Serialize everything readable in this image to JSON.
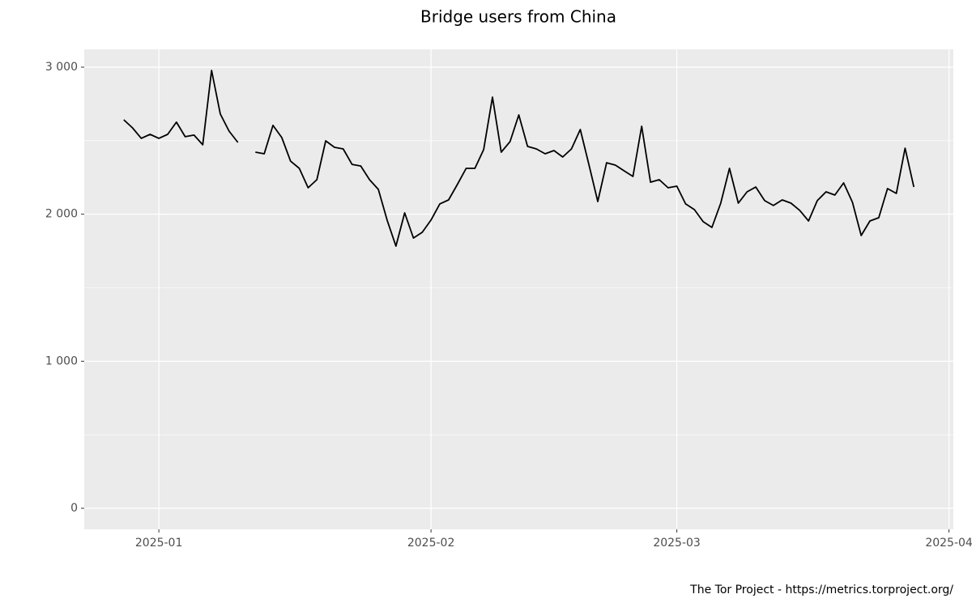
{
  "chart_data": {
    "type": "line",
    "title": "Bridge users from China",
    "caption": "The Tor Project - https://metrics.torproject.org/",
    "categories": [
      null,
      null,
      null,
      null,
      null,
      null,
      null,
      null,
      "2025-01",
      null,
      null,
      null,
      null,
      null,
      null,
      null,
      null,
      null,
      null,
      null,
      null,
      null,
      null,
      null,
      null,
      null,
      null,
      null,
      null,
      null,
      null,
      null,
      null,
      null,
      null,
      null,
      null,
      null,
      null,
      "2025-02",
      null,
      null,
      null,
      null,
      null,
      null,
      null,
      null,
      null,
      null,
      null,
      null,
      null,
      null,
      null,
      null,
      null,
      null,
      null,
      null,
      null,
      null,
      null,
      null,
      null,
      null,
      null,
      "2025-03",
      null,
      null,
      null,
      null,
      null,
      null,
      null,
      null,
      null,
      null,
      null,
      null,
      null,
      null,
      null,
      null,
      null,
      null,
      null,
      null,
      null,
      null,
      null,
      null,
      null,
      null,
      null,
      null,
      null,
      null,
      "2025-04"
    ],
    "series": [
      {
        "color": "#000000",
        "values": [
          null,
          null,
          null,
          null,
          2642,
          2587,
          2516,
          2543,
          2516,
          2543,
          2626,
          2527,
          2538,
          2472,
          2978,
          2681,
          2565,
          2488,
          null,
          2422,
          2411,
          2604,
          2521,
          2361,
          2312,
          2180,
          2235,
          2499,
          2455,
          2444,
          2339,
          2328,
          2235,
          2169,
          1960,
          1783,
          2009,
          1838,
          1877,
          1960,
          2070,
          2097,
          2202,
          2312,
          2312,
          2439,
          2796,
          2422,
          2494,
          2675,
          2461,
          2444,
          2411,
          2433,
          2389,
          2444,
          2576,
          2334,
          2086,
          2350,
          2334,
          2295,
          2257,
          2598,
          2218,
          2235,
          2180,
          2191,
          2070,
          2031,
          1949,
          1910,
          2075,
          2312,
          2075,
          2152,
          2185,
          2092,
          2059,
          2097,
          2075,
          2026,
          1954,
          2092,
          2152,
          2130,
          2213,
          2081,
          1855,
          1954,
          1976,
          2174,
          2141,
          2449,
          2185,
          null,
          null,
          null,
          null
        ]
      }
    ],
    "ylim": [
      -143,
      3121
    ],
    "yticks": [
      0,
      {
        "value": 1000,
        "label": "1 000"
      },
      {
        "value": 2000,
        "label": "2 000"
      },
      {
        "value": 3000,
        "label": "3 000"
      }
    ],
    "yminor": [
      500,
      1500,
      2500
    ],
    "grid": true,
    "background": "#ebebeb"
  }
}
